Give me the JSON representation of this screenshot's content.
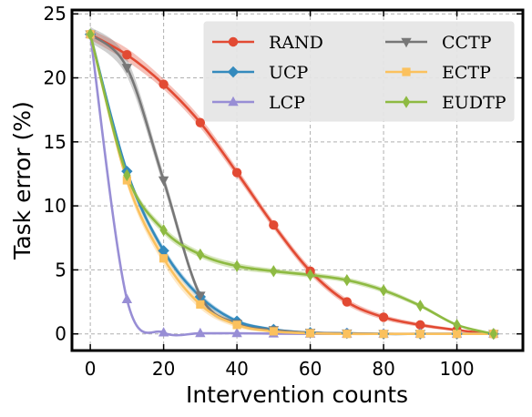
{
  "chart_data": {
    "type": "line",
    "xlabel": "Intervention counts",
    "ylabel": "Task error (%)",
    "xlim": [
      -5,
      118
    ],
    "ylim": [
      -1.3,
      25.3
    ],
    "xticks": [
      0,
      20,
      40,
      60,
      80,
      100
    ],
    "yticks": [
      0,
      5,
      10,
      15,
      20,
      25
    ],
    "grid": true,
    "legend": {
      "position": "top-right",
      "columns": 2
    },
    "series": [
      {
        "name": "RAND",
        "color": "#e24a33",
        "marker": "circle",
        "x": [
          0,
          10,
          20,
          30,
          40,
          50,
          60,
          70,
          80,
          90,
          100,
          110
        ],
        "y": [
          23.4,
          21.8,
          19.5,
          16.5,
          12.6,
          8.5,
          4.9,
          2.5,
          1.3,
          0.7,
          0.3,
          0.0
        ],
        "band": [
          0.4,
          0.5,
          0.4,
          0.4,
          0.35,
          0.3,
          0.3,
          0.25,
          0.2,
          0.15,
          0.1,
          0.0
        ]
      },
      {
        "name": "UCP",
        "color": "#348abd",
        "marker": "diamond",
        "x": [
          0,
          10,
          20,
          30,
          40,
          50,
          60,
          70,
          80,
          90,
          100,
          110
        ],
        "y": [
          23.4,
          12.7,
          6.5,
          2.9,
          1.0,
          0.35,
          0.1,
          0.05,
          0.0,
          0.0,
          0.0,
          0.0
        ],
        "band": [
          0.2,
          0.3,
          0.3,
          0.25,
          0.15,
          0.1,
          0.05,
          0.0,
          0.0,
          0.0,
          0.0,
          0.0
        ]
      },
      {
        "name": "LCP",
        "color": "#988ed5",
        "marker": "triangle-up",
        "x": [
          0,
          10,
          20,
          30,
          40,
          50,
          60,
          70,
          80,
          90,
          100,
          110
        ],
        "y": [
          23.4,
          2.7,
          0.1,
          0.05,
          0.05,
          0.02,
          0.0,
          0.0,
          0.0,
          0.0,
          0.0,
          0.0
        ],
        "band": [
          0.2,
          0.15,
          0.05,
          0.0,
          0.0,
          0.0,
          0.0,
          0.0,
          0.0,
          0.0,
          0.0,
          0.0
        ]
      },
      {
        "name": "CCTP",
        "color": "#777777",
        "marker": "triangle-down",
        "x": [
          0,
          10,
          20,
          30,
          40,
          50,
          60,
          70,
          80,
          90,
          100,
          110
        ],
        "y": [
          23.4,
          20.8,
          12.0,
          3.0,
          0.8,
          0.3,
          0.1,
          0.05,
          0.0,
          0.0,
          0.0,
          0.0
        ],
        "band": [
          0.6,
          0.7,
          0.5,
          0.3,
          0.15,
          0.1,
          0.05,
          0.0,
          0.0,
          0.0,
          0.0,
          0.0
        ]
      },
      {
        "name": "ECTP",
        "color": "#fbc15e",
        "marker": "square",
        "x": [
          0,
          10,
          20,
          30,
          40,
          50,
          60,
          70,
          80,
          90,
          100,
          110
        ],
        "y": [
          23.4,
          12.0,
          5.9,
          2.3,
          0.7,
          0.2,
          0.05,
          0.0,
          0.0,
          0.0,
          0.0,
          0.0
        ],
        "band": [
          0.3,
          0.4,
          0.45,
          0.35,
          0.2,
          0.1,
          0.05,
          0.0,
          0.0,
          0.0,
          0.0,
          0.0
        ]
      },
      {
        "name": "EUDTP",
        "color": "#8eba42",
        "marker": "thin-diamond",
        "x": [
          0,
          10,
          20,
          30,
          40,
          50,
          60,
          70,
          80,
          90,
          100,
          110
        ],
        "y": [
          23.4,
          12.4,
          8.1,
          6.2,
          5.3,
          4.9,
          4.6,
          4.2,
          3.4,
          2.2,
          0.7,
          0.0
        ],
        "band": [
          0.3,
          0.3,
          0.3,
          0.25,
          0.25,
          0.2,
          0.2,
          0.2,
          0.2,
          0.15,
          0.1,
          0.0
        ]
      }
    ]
  }
}
